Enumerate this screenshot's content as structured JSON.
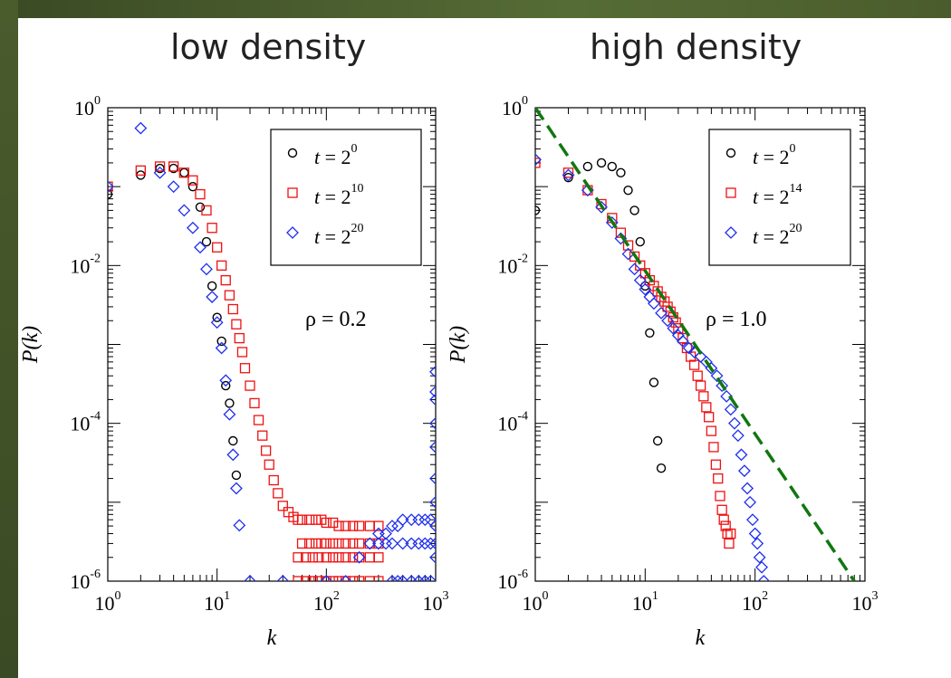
{
  "titles": {
    "left": "low density",
    "right": "high density"
  },
  "colors": {
    "t1": "#000000",
    "t2": "#ee1111",
    "t3": "#1f2fee",
    "fit": "#117711"
  },
  "chart_data": [
    {
      "type": "scatter",
      "title": "low density",
      "xlabel": "k",
      "ylabel": "P(k)",
      "xscale": "log",
      "yscale": "log",
      "xlim": [
        1,
        1000
      ],
      "ylim": [
        1e-06,
        1
      ],
      "annotation": "ρ = 0.2",
      "legend_position": "top-right",
      "x_ticks": [
        "10^0",
        "10^1",
        "10^2",
        "10^3"
      ],
      "y_ticks": [
        "10^-6",
        "10^-4",
        "10^-2",
        "10^0"
      ],
      "series": [
        {
          "name": "t = 2^0",
          "marker": "circle",
          "x": [
            1,
            2,
            3,
            4,
            5,
            6,
            7,
            8,
            9,
            10,
            11,
            12,
            13,
            14,
            15
          ],
          "y": [
            0.08,
            0.14,
            0.17,
            0.17,
            0.15,
            0.1,
            0.055,
            0.02,
            0.0055,
            0.0022,
            0.0011,
            0.0003,
            0.00018,
            6e-05,
            2.2e-05
          ]
        },
        {
          "name": "t = 2^10",
          "marker": "square",
          "x": [
            1,
            2,
            3,
            4,
            5,
            6,
            7,
            8,
            9,
            10,
            11,
            12,
            13,
            14,
            15,
            16,
            17,
            18,
            20,
            22,
            24,
            26,
            28,
            30,
            33,
            36,
            40,
            45,
            50,
            55,
            60,
            70,
            80,
            90,
            100,
            115,
            130,
            150,
            175,
            200,
            250,
            300,
            60,
            70,
            80,
            90,
            100,
            115,
            130,
            150,
            175,
            200,
            250,
            300,
            55,
            65,
            75,
            85,
            100,
            115,
            130,
            150,
            175,
            200,
            250,
            300,
            55,
            65,
            75,
            85,
            100,
            115,
            130,
            150,
            175,
            200,
            250,
            300
          ],
          "y": [
            0.1,
            0.16,
            0.18,
            0.18,
            0.15,
            0.12,
            0.08,
            0.05,
            0.03,
            0.017,
            0.01,
            0.0065,
            0.0042,
            0.0028,
            0.0018,
            0.0012,
            0.0008,
            0.0005,
            0.0003,
            0.00018,
            0.00011,
            7e-05,
            4.5e-05,
            3e-05,
            1.9e-05,
            1.3e-05,
            9e-06,
            7.5e-06,
            6.5e-06,
            6e-06,
            6e-06,
            6e-06,
            6e-06,
            6e-06,
            5.5e-06,
            5.5e-06,
            5e-06,
            5e-06,
            5e-06,
            5e-06,
            5e-06,
            5e-06,
            3e-06,
            3e-06,
            3e-06,
            3e-06,
            3e-06,
            3e-06,
            3e-06,
            3e-06,
            3e-06,
            3e-06,
            3e-06,
            3e-06,
            2e-06,
            2e-06,
            2e-06,
            2e-06,
            2e-06,
            2e-06,
            2e-06,
            2e-06,
            2e-06,
            2e-06,
            2e-06,
            2e-06,
            1e-06,
            1e-06,
            1e-06,
            1e-06,
            1e-06,
            1e-06,
            1e-06,
            1e-06,
            1e-06,
            1e-06,
            1e-06,
            1e-06
          ]
        },
        {
          "name": "t = 2^20",
          "marker": "diamond",
          "x": [
            1,
            2,
            3,
            4,
            5,
            6,
            7,
            8,
            9,
            10,
            11,
            12,
            13,
            14,
            15,
            16,
            20,
            40,
            100,
            150,
            200,
            250,
            300,
            350,
            400,
            450,
            500,
            600,
            700,
            800,
            900,
            1000,
            1000,
            1000,
            1000,
            1000,
            1000,
            1000,
            1000,
            1000,
            1000,
            400,
            450,
            500,
            600,
            700,
            800,
            900,
            300,
            350,
            400,
            500,
            600,
            700,
            800,
            900
          ],
          "y": [
            0.1,
            0.55,
            0.15,
            0.1,
            0.05,
            0.03,
            0.017,
            0.009,
            0.004,
            0.0019,
            0.0009,
            0.00035,
            0.00013,
            4e-05,
            1.5e-05,
            5.1e-06,
            1e-06,
            1e-06,
            1e-06,
            1e-06,
            2e-06,
            3e-06,
            4e-06,
            4e-06,
            5e-06,
            5e-06,
            6e-06,
            6e-06,
            6e-06,
            6e-06,
            6e-06,
            0.00045,
            0.00025,
            0.0002,
            0.0001,
            5e-05,
            2e-05,
            1e-05,
            5e-06,
            3e-06,
            2e-06,
            1e-06,
            1e-06,
            1e-06,
            1e-06,
            1e-06,
            1e-06,
            1e-06,
            3e-06,
            3e-06,
            3e-06,
            3e-06,
            3e-06,
            3e-06,
            3e-06,
            3e-06
          ]
        }
      ]
    },
    {
      "type": "scatter",
      "title": "high density",
      "xlabel": "k",
      "ylabel": "P(k)",
      "xscale": "log",
      "yscale": "log",
      "xlim": [
        1,
        1000
      ],
      "ylim": [
        1e-06,
        1
      ],
      "annotation": "ρ = 1.0",
      "legend_position": "top-right",
      "x_ticks": [
        "10^0",
        "10^1",
        "10^2",
        "10^3"
      ],
      "y_ticks": [
        "10^-6",
        "10^-4",
        "10^-2",
        "10^0"
      ],
      "series": [
        {
          "name": "t = 2^0",
          "marker": "circle",
          "x": [
            1,
            2,
            3,
            4,
            5,
            6,
            7,
            8,
            9,
            10,
            11,
            12,
            13
          ],
          "y": [
            0.05,
            0.13,
            0.18,
            0.2,
            0.18,
            0.15,
            0.09,
            0.05,
            0.02,
            0.0055,
            0.0014,
            0.00033,
            6e-05
          ],
          "extra_x": [
            14
          ],
          "extra_y": [
            2.7e-05
          ]
        },
        {
          "name": "t = 2^14",
          "marker": "square",
          "x": [
            1,
            2,
            3,
            4,
            5,
            6,
            7,
            8,
            9,
            10,
            11,
            12,
            13,
            14,
            15,
            16,
            17,
            18,
            19,
            20,
            22,
            24,
            26,
            28,
            30,
            32,
            34,
            36,
            38,
            40,
            42,
            44,
            46,
            48,
            50,
            52,
            54,
            56,
            58,
            60
          ],
          "y": [
            0.2,
            0.15,
            0.09,
            0.06,
            0.04,
            0.026,
            0.018,
            0.013,
            0.01,
            0.008,
            0.0065,
            0.0055,
            0.0047,
            0.004,
            0.0035,
            0.003,
            0.0026,
            0.0022,
            0.0019,
            0.0016,
            0.0012,
            0.0009,
            0.0007,
            0.00055,
            0.0004,
            0.0003,
            0.00022,
            0.00016,
            0.00012,
            8e-05,
            5e-05,
            3e-05,
            2e-05,
            1.2e-05,
            8e-06,
            6e-06,
            5e-06,
            4e-06,
            3e-06,
            4e-06
          ]
        },
        {
          "name": "t = 2^20",
          "marker": "diamond",
          "x": [
            1,
            2,
            3,
            4,
            5,
            6,
            7,
            8,
            9,
            10,
            11,
            12,
            14,
            16,
            18,
            20,
            22,
            25,
            28,
            32,
            36,
            40,
            45,
            50,
            55,
            60,
            65,
            70,
            75,
            80,
            85,
            90,
            95,
            100,
            105,
            110,
            115,
            120
          ],
          "y": [
            0.22,
            0.14,
            0.09,
            0.055,
            0.035,
            0.022,
            0.014,
            0.009,
            0.0065,
            0.005,
            0.004,
            0.0033,
            0.0025,
            0.002,
            0.0016,
            0.0013,
            0.0011,
            0.0009,
            0.0008,
            0.0007,
            0.0006,
            0.0005,
            0.0004,
            0.0003,
            0.00022,
            0.00015,
            0.0001,
            7e-05,
            4e-05,
            2.5e-05,
            1.5e-05,
            1e-05,
            6e-06,
            4e-06,
            3e-06,
            2e-06,
            1.5e-06,
            1e-06
          ]
        },
        {
          "name": "",
          "marker": "line",
          "style": "dashed",
          "x": [
            1,
            800
          ],
          "y": [
            1,
            1e-06
          ]
        }
      ]
    }
  ]
}
